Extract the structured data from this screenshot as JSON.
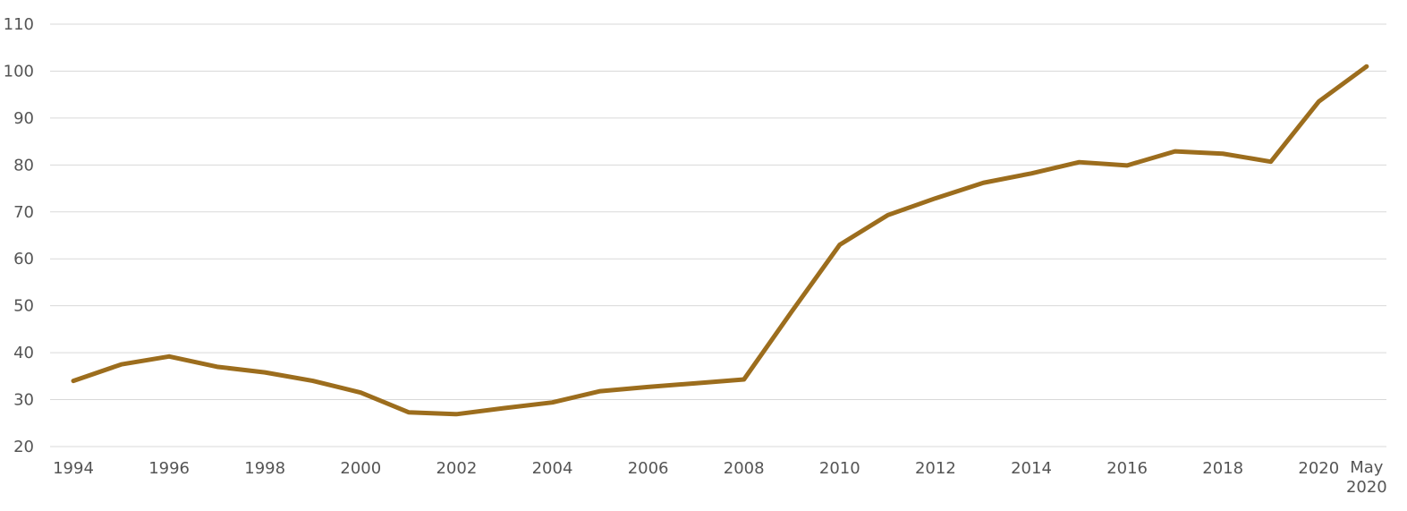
{
  "chart_data": {
    "type": "line",
    "title": "",
    "xlabel": "",
    "ylabel": "",
    "ylim": [
      20,
      110
    ],
    "yticks": [
      20,
      30,
      40,
      50,
      60,
      70,
      80,
      90,
      100,
      110
    ],
    "grid": true,
    "line_color": "#9c6d1d",
    "x": [
      1994,
      1995,
      1996,
      1997,
      1998,
      1999,
      2000,
      2001,
      2002,
      2003,
      2004,
      2005,
      2006,
      2007,
      2008,
      2009,
      2010,
      2011,
      2012,
      2013,
      2014,
      2015,
      2016,
      2017,
      2018,
      2019,
      2020,
      "May 2020"
    ],
    "xticks": [
      {
        "x": 1994,
        "label": "1994"
      },
      {
        "x": 1996,
        "label": "1996"
      },
      {
        "x": 1998,
        "label": "1998"
      },
      {
        "x": 2000,
        "label": "2000"
      },
      {
        "x": 2002,
        "label": "2002"
      },
      {
        "x": 2004,
        "label": "2004"
      },
      {
        "x": 2006,
        "label": "2006"
      },
      {
        "x": 2008,
        "label": "2008"
      },
      {
        "x": 2010,
        "label": "2010"
      },
      {
        "x": 2012,
        "label": "2012"
      },
      {
        "x": 2014,
        "label": "2014"
      },
      {
        "x": 2016,
        "label": "2016"
      },
      {
        "x": 2018,
        "label": "2018"
      },
      {
        "x": 2020,
        "label": "2020"
      },
      {
        "x": "May 2020",
        "label": [
          "May",
          "2020"
        ]
      }
    ],
    "series": [
      {
        "values": [
          34,
          37.5,
          39.2,
          37,
          35.8,
          34,
          31.5,
          27.3,
          26.9,
          28.2,
          29.4,
          31.8,
          32.7,
          33.5,
          34.3,
          48.8,
          63,
          69.3,
          72.9,
          76.2,
          78.2,
          80.6,
          79.9,
          82.9,
          82.4,
          80.7,
          93.5,
          101
        ]
      }
    ]
  }
}
